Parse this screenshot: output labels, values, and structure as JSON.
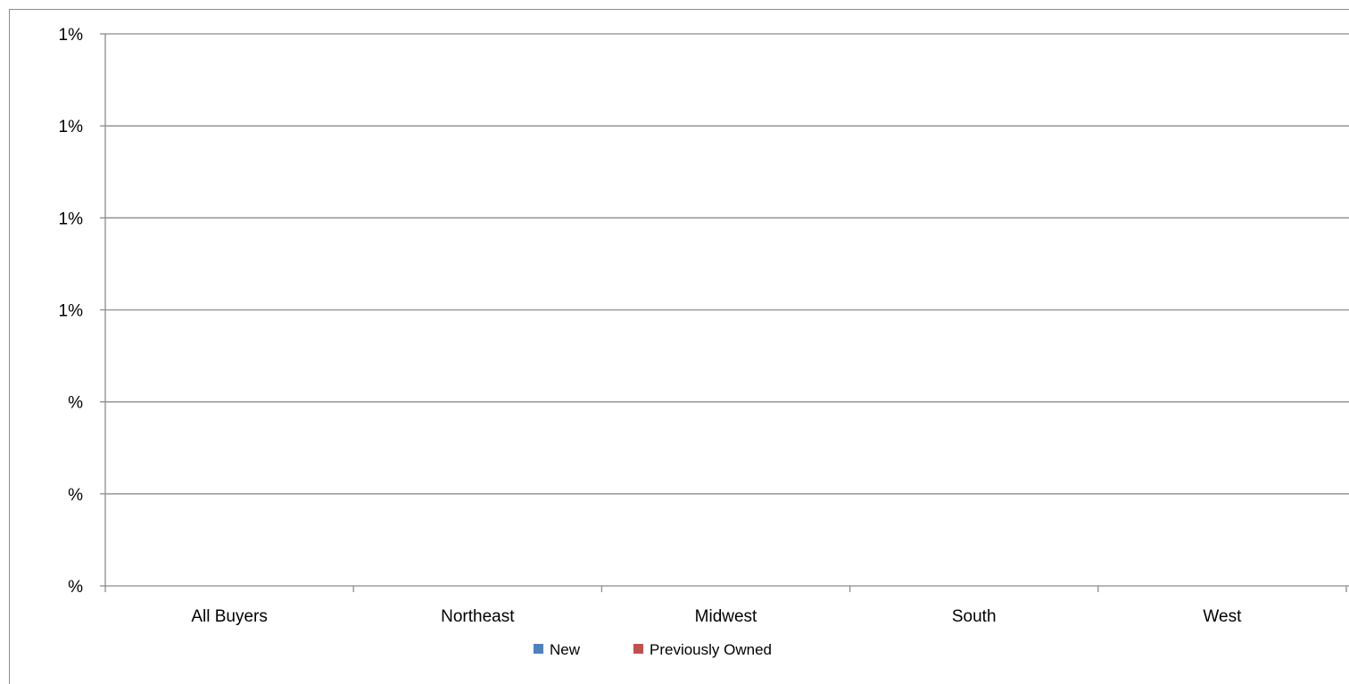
{
  "chart_data": {
    "type": "bar",
    "title": "",
    "xlabel": "",
    "ylabel": "",
    "categories": [
      "All Buyers",
      "Northeast",
      "Midwest",
      "South",
      "West"
    ],
    "y_tick_labels": [
      "%",
      "%",
      "%",
      "1%",
      "1%",
      "1%",
      "1%"
    ],
    "ylim": [
      0,
      6
    ],
    "series": [
      {
        "name": "New",
        "color": "#4f81bd",
        "values": [
          0,
          0,
          0,
          0,
          0
        ]
      },
      {
        "name": "Previously Owned",
        "color": "#c0504d",
        "values": [
          0,
          0,
          0,
          0,
          0
        ]
      }
    ],
    "grid": true,
    "legend_position": "bottom",
    "colors": {
      "gridline": "#8c8c8c",
      "axis": "#8c8c8c",
      "text": "#000000"
    }
  }
}
